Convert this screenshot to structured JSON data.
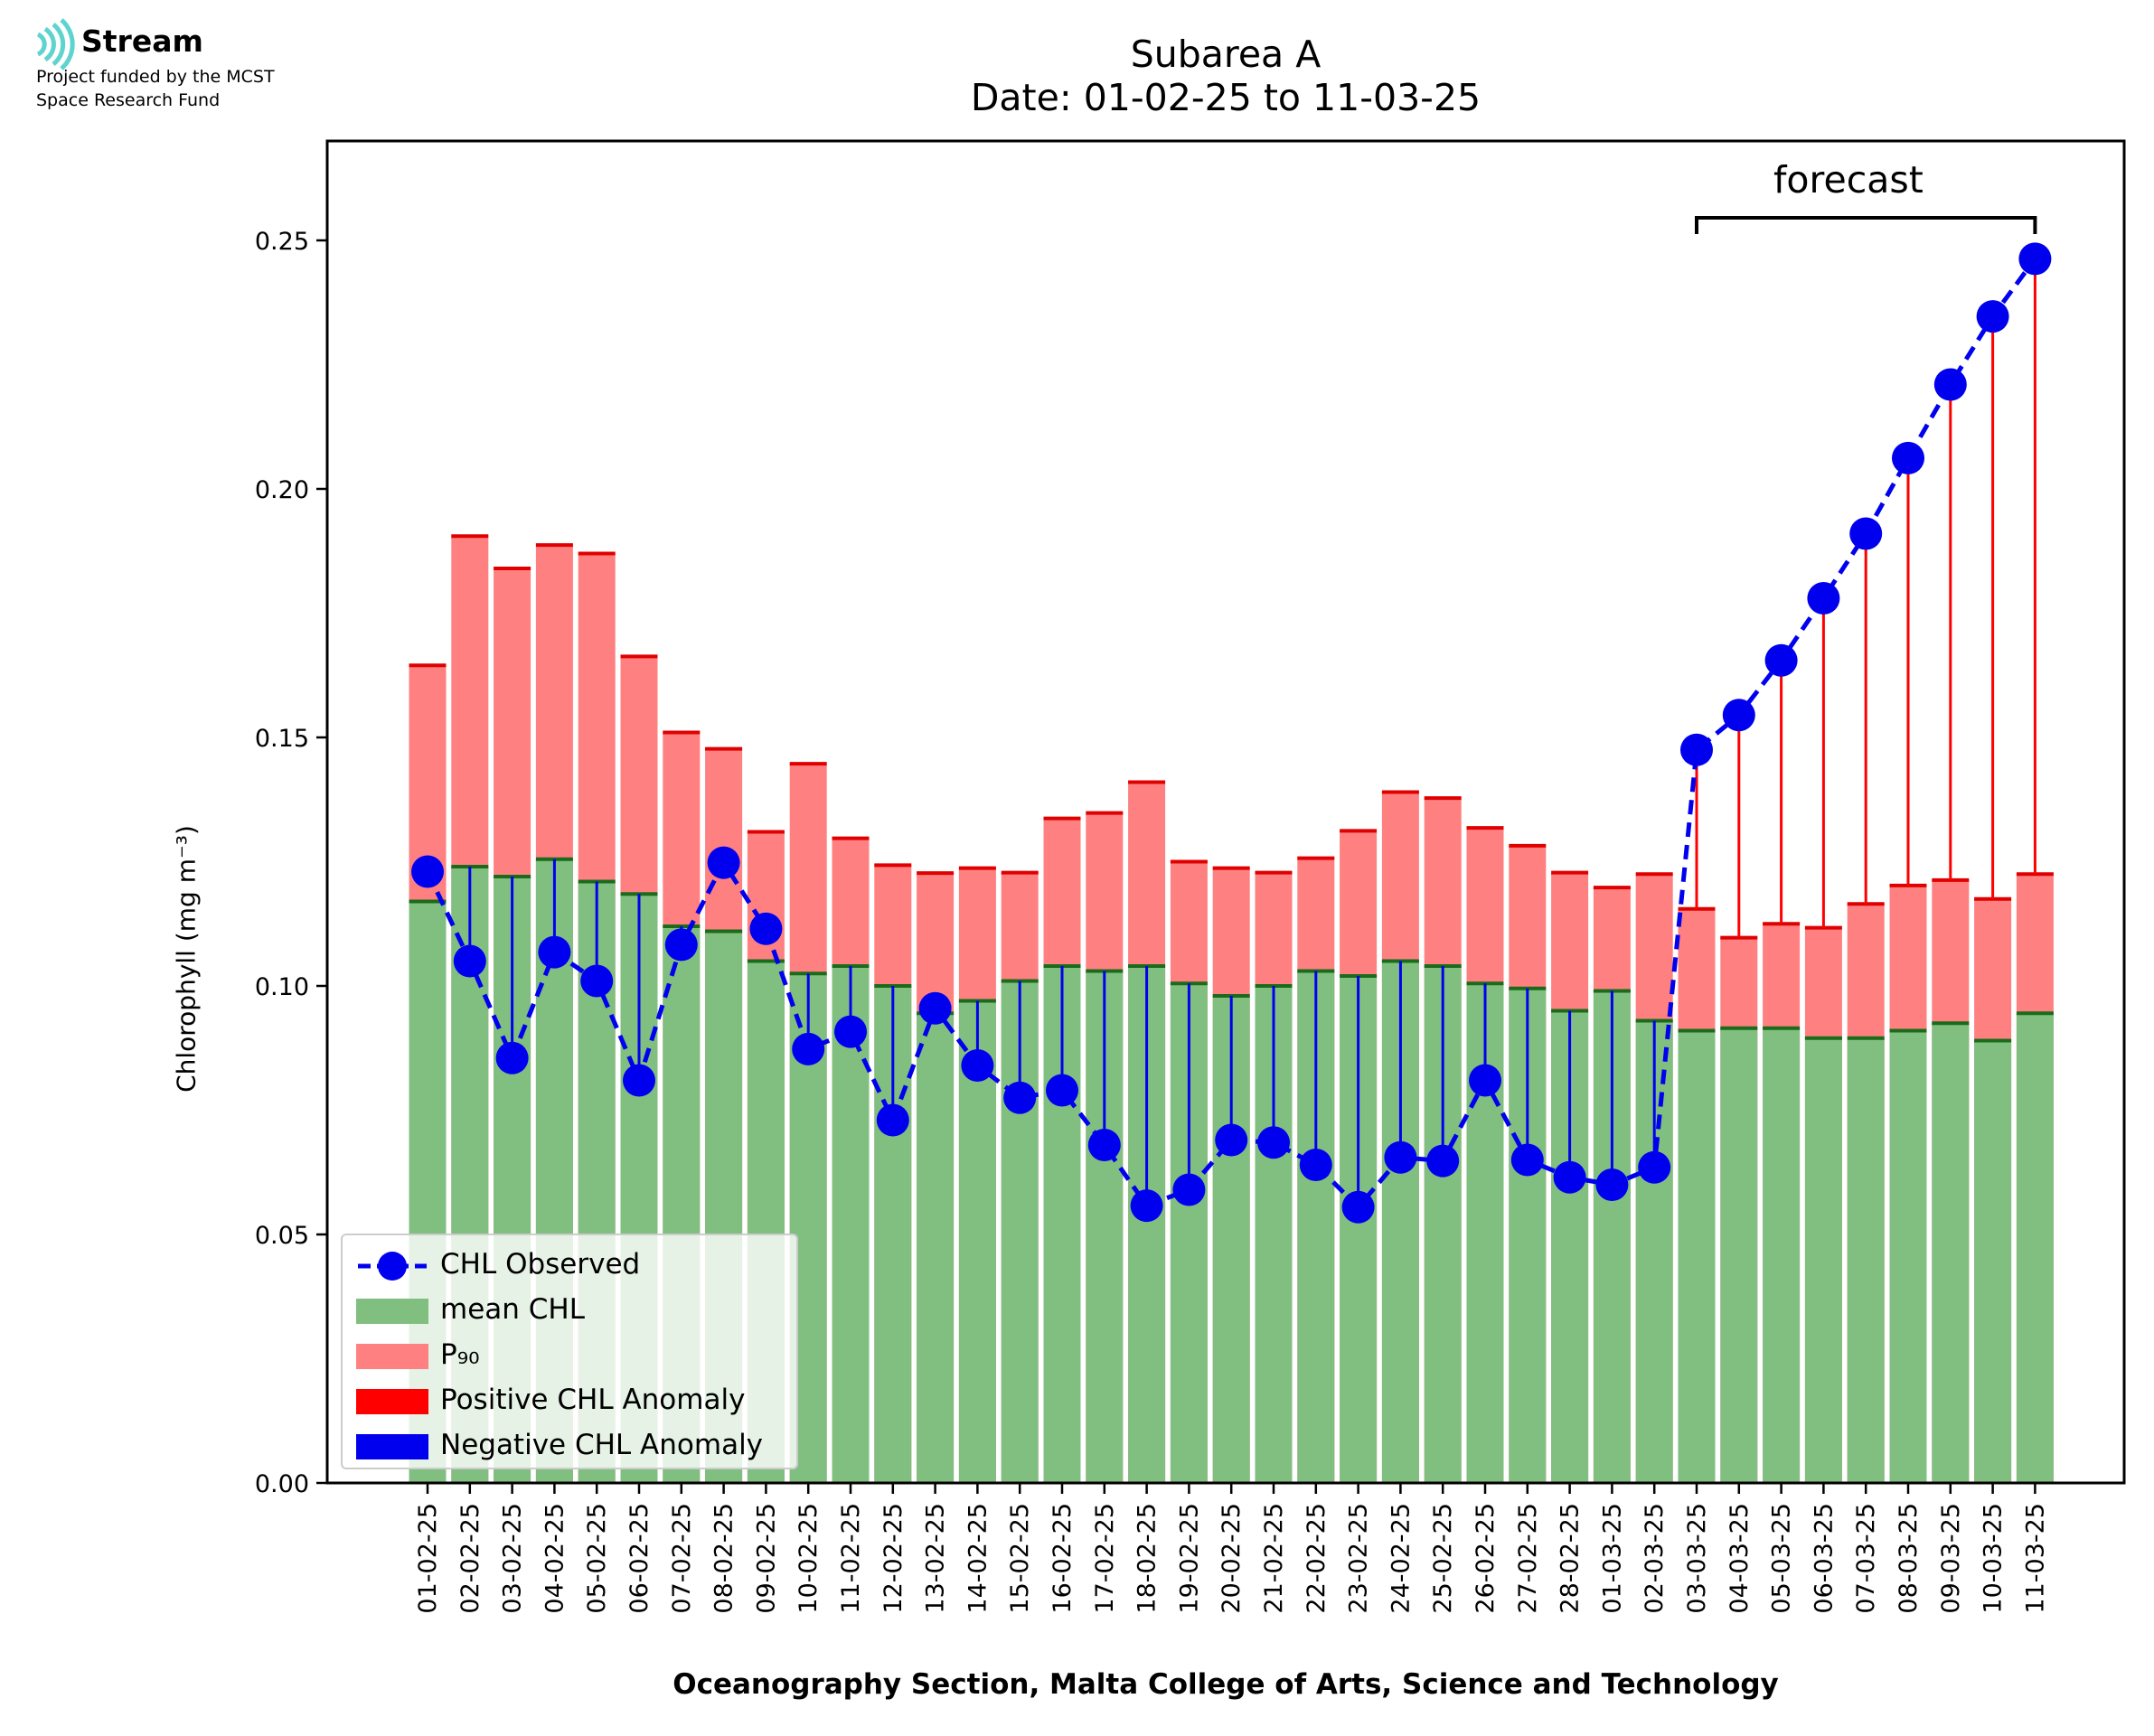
{
  "logo": {
    "name": "Stream",
    "subtitle_line1": "Project funded by the MCST",
    "subtitle_line2": "Space Research Fund"
  },
  "title": {
    "line1": "Subarea A",
    "line2": "Date: 01-02-25 to 11-03-25"
  },
  "annotation": {
    "forecast": "forecast"
  },
  "colors": {
    "mean": "#80bf80",
    "mean_edge": "#1a6b1a",
    "p90": "#ff8080",
    "p90_edge": "#e00000",
    "observed": "#0000ee",
    "positive_anomaly": "#ff0000",
    "negative_anomaly": "#0000ee"
  },
  "chart_data": {
    "type": "bar",
    "title": "Subarea A\nDate: 01-02-25 to 11-03-25",
    "xlabel": "Oceanography Section, Malta College of Arts, Science and Technology",
    "ylabel": "Chlorophyll (mg m⁻³)",
    "ylim": [
      0,
      0.27
    ],
    "yticks": [
      "0.00",
      "0.05",
      "0.10",
      "0.15",
      "0.20",
      "0.25"
    ],
    "grid": false,
    "legend_position": "lower-left",
    "legend": [
      "CHL Observed",
      "mean CHL",
      "P₉₀",
      "Positive CHL Anomaly",
      "Negative CHL Anomaly"
    ],
    "forecast_range": [
      "03-03-25",
      "11-03-25"
    ],
    "categories": [
      "01-02-25",
      "02-02-25",
      "03-02-25",
      "04-02-25",
      "05-02-25",
      "06-02-25",
      "07-02-25",
      "08-02-25",
      "09-02-25",
      "10-02-25",
      "11-02-25",
      "12-02-25",
      "13-02-25",
      "14-02-25",
      "15-02-25",
      "16-02-25",
      "17-02-25",
      "18-02-25",
      "19-02-25",
      "20-02-25",
      "21-02-25",
      "22-02-25",
      "23-02-25",
      "24-02-25",
      "25-02-25",
      "26-02-25",
      "27-02-25",
      "28-02-25",
      "01-03-25",
      "02-03-25",
      "03-03-25",
      "04-03-25",
      "05-03-25",
      "06-03-25",
      "07-03-25",
      "08-03-25",
      "09-03-25",
      "10-03-25",
      "11-03-25"
    ],
    "series": [
      {
        "name": "mean CHL",
        "type": "bar",
        "values": [
          0.117,
          0.124,
          0.122,
          0.1255,
          0.121,
          0.1185,
          0.112,
          0.111,
          0.105,
          0.1025,
          0.104,
          0.1,
          0.0945,
          0.097,
          0.101,
          0.104,
          0.103,
          0.104,
          0.1005,
          0.098,
          0.1,
          0.103,
          0.102,
          0.105,
          0.104,
          0.1005,
          0.0995,
          0.095,
          0.099,
          0.093,
          0.091,
          0.0915,
          0.0915,
          0.0895,
          0.0895,
          0.091,
          0.0925,
          0.089,
          0.0945
        ]
      },
      {
        "name": "P₉₀",
        "type": "bar",
        "values": [
          0.1645,
          0.1905,
          0.184,
          0.1887,
          0.187,
          0.1663,
          0.151,
          0.1477,
          0.131,
          0.1447,
          0.1297,
          0.1243,
          0.1227,
          0.1237,
          0.1228,
          0.1337,
          0.1348,
          0.141,
          0.125,
          0.1237,
          0.1228,
          0.1257,
          0.1312,
          0.139,
          0.1378,
          0.1318,
          0.1282,
          0.1228,
          0.1198,
          0.1225,
          0.1155,
          0.1097,
          0.1125,
          0.1117,
          0.1165,
          0.1202,
          0.1213,
          0.1175,
          0.1225
        ]
      },
      {
        "name": "CHL Observed",
        "type": "line",
        "values": [
          0.123,
          0.105,
          0.0855,
          0.1068,
          0.101,
          0.081,
          0.1083,
          0.1248,
          0.1115,
          0.0873,
          0.0908,
          0.073,
          0.0955,
          0.084,
          0.0775,
          0.079,
          0.068,
          0.0558,
          0.059,
          0.069,
          0.0685,
          0.064,
          0.0555,
          0.0655,
          0.0648,
          0.081,
          0.065,
          0.0615,
          0.06,
          0.0635,
          0.1475,
          0.1545,
          0.1655,
          0.178,
          0.191,
          0.2062,
          0.221,
          0.2347,
          0.2463
        ]
      }
    ]
  }
}
